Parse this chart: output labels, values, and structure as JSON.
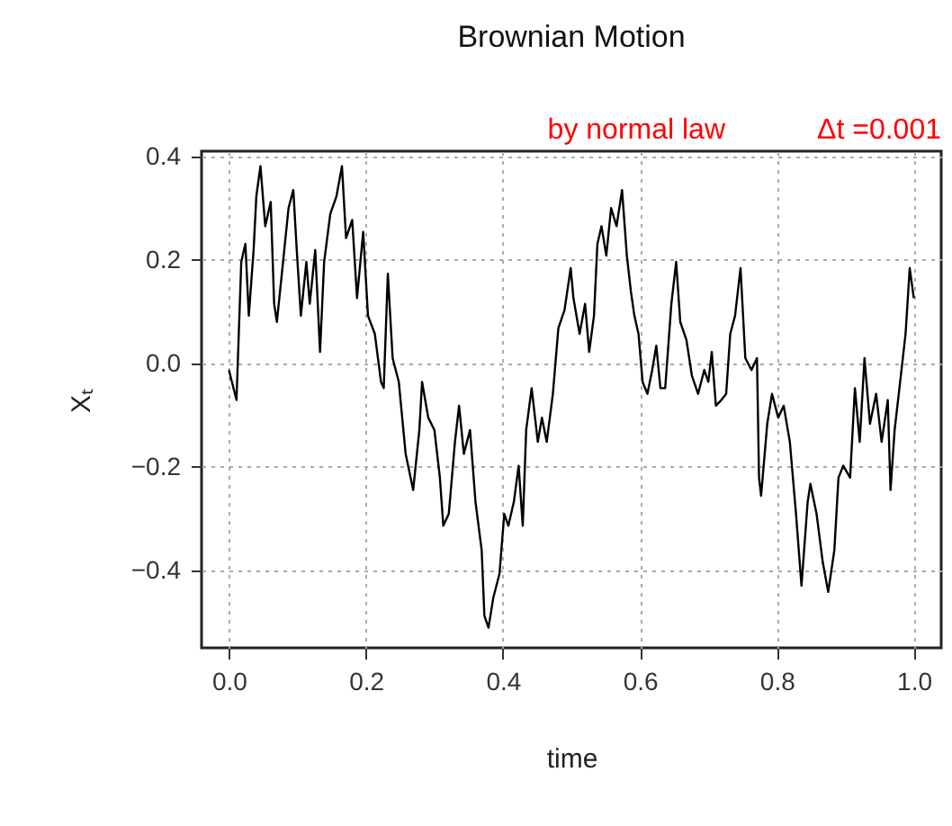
{
  "chart_data": {
    "type": "line",
    "title": "Brownian Motion",
    "subtitle": "by normal law",
    "annotations": [
      "Δt =0.001"
    ],
    "xlabel": "time",
    "ylabel": "Xₜ",
    "x": [
      0.0,
      0.011,
      0.018,
      0.024,
      0.029,
      0.036,
      0.04,
      0.046,
      0.053,
      0.061,
      0.066,
      0.07,
      0.079,
      0.087,
      0.094,
      0.099,
      0.105,
      0.113,
      0.118,
      0.126,
      0.133,
      0.139,
      0.148,
      0.157,
      0.165,
      0.171,
      0.18,
      0.187,
      0.196,
      0.203,
      0.213,
      0.222,
      0.226,
      0.232,
      0.239,
      0.248,
      0.258,
      0.269,
      0.278,
      0.282,
      0.291,
      0.3,
      0.308,
      0.313,
      0.321,
      0.33,
      0.336,
      0.343,
      0.352,
      0.36,
      0.369,
      0.373,
      0.379,
      0.386,
      0.395,
      0.402,
      0.408,
      0.416,
      0.423,
      0.429,
      0.434,
      0.442,
      0.451,
      0.457,
      0.464,
      0.473,
      0.481,
      0.49,
      0.499,
      0.503,
      0.512,
      0.52,
      0.526,
      0.533,
      0.538,
      0.544,
      0.551,
      0.558,
      0.566,
      0.574,
      0.581,
      0.587,
      0.592,
      0.598,
      0.604,
      0.611,
      0.618,
      0.624,
      0.63,
      0.637,
      0.646,
      0.653,
      0.659,
      0.668,
      0.676,
      0.685,
      0.694,
      0.7,
      0.705,
      0.711,
      0.719,
      0.726,
      0.732,
      0.739,
      0.747,
      0.754,
      0.763,
      0.771,
      0.774,
      0.777,
      0.786,
      0.793,
      0.802,
      0.81,
      0.819,
      0.828,
      0.836,
      0.845,
      0.849,
      0.858,
      0.867,
      0.875,
      0.884,
      0.89,
      0.897,
      0.907,
      0.914,
      0.921,
      0.928,
      0.936,
      0.945,
      0.953,
      0.962,
      0.966,
      0.972,
      0.979,
      0.988,
      0.994,
      1.0
    ],
    "series": [
      {
        "color": "#000000",
        "values": [
          -0.013,
          -0.071,
          0.196,
          0.231,
          0.092,
          0.219,
          0.323,
          0.381,
          0.265,
          0.312,
          0.115,
          0.08,
          0.196,
          0.3,
          0.335,
          0.219,
          0.092,
          0.196,
          0.115,
          0.219,
          0.022,
          0.196,
          0.289,
          0.323,
          0.381,
          0.242,
          0.277,
          0.126,
          0.254,
          0.092,
          0.057,
          -0.036,
          -0.048,
          0.173,
          0.01,
          -0.036,
          -0.175,
          -0.245,
          -0.129,
          -0.036,
          -0.105,
          -0.129,
          -0.221,
          -0.314,
          -0.291,
          -0.152,
          -0.082,
          -0.175,
          -0.129,
          -0.268,
          -0.361,
          -0.488,
          -0.511,
          -0.453,
          -0.407,
          -0.291,
          -0.314,
          -0.268,
          -0.198,
          -0.314,
          -0.129,
          -0.048,
          -0.152,
          -0.105,
          -0.152,
          -0.059,
          0.068,
          0.103,
          0.184,
          0.126,
          0.057,
          0.115,
          0.022,
          0.092,
          0.231,
          0.265,
          0.208,
          0.3,
          0.265,
          0.335,
          0.208,
          0.138,
          0.092,
          0.057,
          -0.036,
          -0.059,
          -0.013,
          0.034,
          -0.048,
          -0.048,
          0.115,
          0.196,
          0.08,
          0.045,
          -0.024,
          -0.059,
          -0.013,
          -0.036,
          0.022,
          -0.082,
          -0.071,
          -0.059,
          0.057,
          0.092,
          0.184,
          0.01,
          -0.013,
          0.01,
          -0.221,
          -0.256,
          -0.117,
          -0.059,
          -0.105,
          -0.082,
          -0.152,
          -0.291,
          -0.43,
          -0.268,
          -0.233,
          -0.291,
          -0.384,
          -0.442,
          -0.361,
          -0.221,
          -0.198,
          -0.221,
          -0.048,
          -0.152,
          0.01,
          -0.117,
          -0.059,
          -0.152,
          -0.071,
          -0.245,
          -0.129,
          -0.048,
          0.057,
          0.184,
          0.126
        ]
      }
    ],
    "xlim": [
      -0.04,
      1.04
    ],
    "ylim": [
      -0.55,
      0.41
    ],
    "xticks": [
      {
        "value": 0,
        "label": "0.0"
      },
      0.2,
      0.4,
      0.6,
      0.8,
      {
        "value": 1,
        "label": "1.0"
      }
    ],
    "yticks": [
      -0.4,
      -0.2,
      {
        "value": 0,
        "label": "0.0"
      },
      0.2,
      0.4
    ],
    "grid": true,
    "line_style": "solid",
    "marker": "none"
  }
}
